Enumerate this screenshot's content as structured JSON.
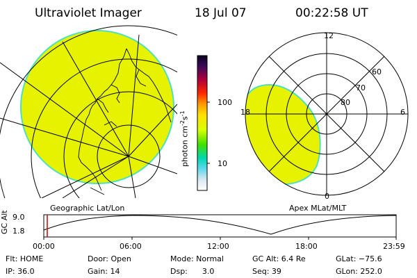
{
  "header": {
    "instrument": "Ultraviolet Imager",
    "date": "18 Jul 07",
    "time": "00:22:58 UT"
  },
  "left_panel": {
    "label": "Geographic Lat/Lon"
  },
  "right_panel": {
    "label": "Apex MLat/MLT",
    "mlt_labels": [
      "12",
      "18",
      "6",
      "0"
    ],
    "lat_labels": [
      "60",
      "70",
      "80"
    ]
  },
  "colorbar": {
    "unit_label": "photon cm",
    "unit_sup1": "-2",
    "unit_mid": "s",
    "unit_sup2": "-1",
    "ticks": [
      "100",
      "10"
    ],
    "scale": "log",
    "colors": [
      "#1e0a3c",
      "#a0002a",
      "#ff8c00",
      "#e6ff00",
      "#00e07a",
      "#a0e6ee",
      "#ffffff"
    ]
  },
  "timeline": {
    "y_label": "GC Alt",
    "y_ticks": [
      "9.0",
      "1.8"
    ],
    "x_ticks": [
      "00:00",
      "06:00",
      "12:00",
      "18:00",
      "23:59"
    ],
    "current_marker_color": "#cc0000"
  },
  "status": {
    "flt": "Flt: HOME",
    "ip": "IP: 36.0",
    "door": "Door: Open",
    "gain": "Gain: 14",
    "mode": "Mode: Normal",
    "dsp": "Dsp:      3.0",
    "gc_alt": "GC Alt: 6.4 Re",
    "seq": "Seq: 39",
    "glat": "GLat: −75.6",
    "glon": "GLon: 252.0"
  },
  "colors": {
    "emission": "#e6f200",
    "edge": "#4de0c0"
  }
}
